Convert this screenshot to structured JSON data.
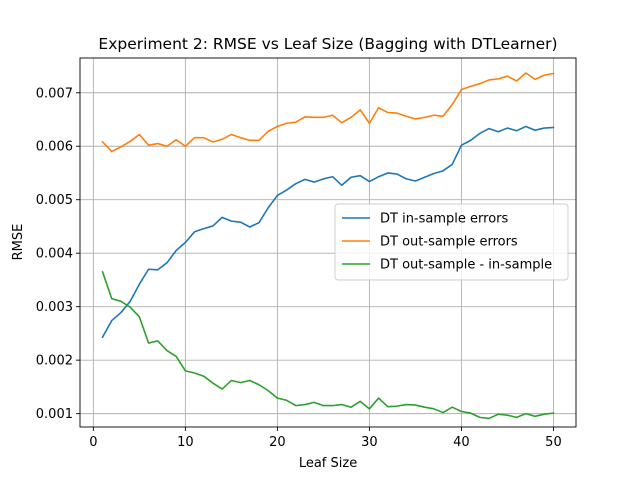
{
  "chart_data": {
    "type": "line",
    "title": "Experiment 2: RMSE vs Leaf Size (Bagging with DTLearner)",
    "xlabel": "Leaf Size",
    "ylabel": "RMSE",
    "xlim": [
      -1.45,
      52.45
    ],
    "ylim": [
      0.00075,
      0.00765
    ],
    "xticks": [
      0,
      10,
      20,
      30,
      40,
      50
    ],
    "yticks": [
      0.001,
      0.002,
      0.003,
      0.004,
      0.005,
      0.006,
      0.007
    ],
    "ytick_labels": [
      "0.001",
      "0.002",
      "0.003",
      "0.004",
      "0.005",
      "0.006",
      "0.007"
    ],
    "grid": true,
    "legend_position": "center-right",
    "x": [
      1,
      2,
      3,
      4,
      5,
      6,
      7,
      8,
      9,
      10,
      11,
      12,
      13,
      14,
      15,
      16,
      17,
      18,
      19,
      20,
      21,
      22,
      23,
      24,
      25,
      26,
      27,
      28,
      29,
      30,
      31,
      32,
      33,
      34,
      35,
      36,
      37,
      38,
      39,
      40,
      41,
      42,
      43,
      44,
      45,
      46,
      47,
      48,
      49,
      50
    ],
    "series": [
      {
        "name": "DT in-sample errors",
        "color": "#1f77b4",
        "values": [
          0.00243,
          0.00274,
          0.00289,
          0.0031,
          0.00342,
          0.0037,
          0.00369,
          0.00382,
          0.00405,
          0.0042,
          0.0044,
          0.00446,
          0.00451,
          0.00467,
          0.0046,
          0.00458,
          0.00449,
          0.00457,
          0.00485,
          0.00508,
          0.00518,
          0.0053,
          0.00538,
          0.00533,
          0.00539,
          0.00543,
          0.00527,
          0.00542,
          0.00545,
          0.00534,
          0.00543,
          0.0055,
          0.00548,
          0.00539,
          0.00535,
          0.00542,
          0.00549,
          0.00554,
          0.00566,
          0.00602,
          0.00611,
          0.00624,
          0.00633,
          0.00627,
          0.00634,
          0.00629,
          0.00637,
          0.0063,
          0.00634,
          0.00635
        ]
      },
      {
        "name": "DT out-sample errors",
        "color": "#ff7f0e",
        "values": [
          0.00608,
          0.0059,
          0.00599,
          0.00609,
          0.00622,
          0.00602,
          0.00605,
          0.006,
          0.00612,
          0.006,
          0.00616,
          0.00616,
          0.00608,
          0.00613,
          0.00622,
          0.00616,
          0.00611,
          0.00611,
          0.00628,
          0.00637,
          0.00643,
          0.00645,
          0.00655,
          0.00654,
          0.00654,
          0.00658,
          0.00644,
          0.00654,
          0.00668,
          0.00643,
          0.00672,
          0.00663,
          0.00662,
          0.00656,
          0.00651,
          0.00654,
          0.00658,
          0.00656,
          0.00678,
          0.00706,
          0.00712,
          0.00717,
          0.00724,
          0.00726,
          0.00731,
          0.00722,
          0.00737,
          0.00725,
          0.00733,
          0.00736
        ]
      },
      {
        "name": "DT out-sample - in-sample",
        "color": "#2ca02c",
        "values": [
          0.00365,
          0.00315,
          0.0031,
          0.00299,
          0.00281,
          0.00232,
          0.00236,
          0.00218,
          0.00207,
          0.0018,
          0.00176,
          0.0017,
          0.00157,
          0.00146,
          0.00162,
          0.00158,
          0.00162,
          0.00154,
          0.00143,
          0.00129,
          0.00125,
          0.00115,
          0.00117,
          0.00121,
          0.00115,
          0.00115,
          0.00117,
          0.00112,
          0.00123,
          0.00109,
          0.00129,
          0.00113,
          0.00114,
          0.00117,
          0.00116,
          0.00112,
          0.00109,
          0.00102,
          0.00112,
          0.00104,
          0.00101,
          0.00093,
          0.00091,
          0.00099,
          0.00097,
          0.00093,
          0.001,
          0.00095,
          0.00099,
          0.00101
        ]
      }
    ]
  }
}
